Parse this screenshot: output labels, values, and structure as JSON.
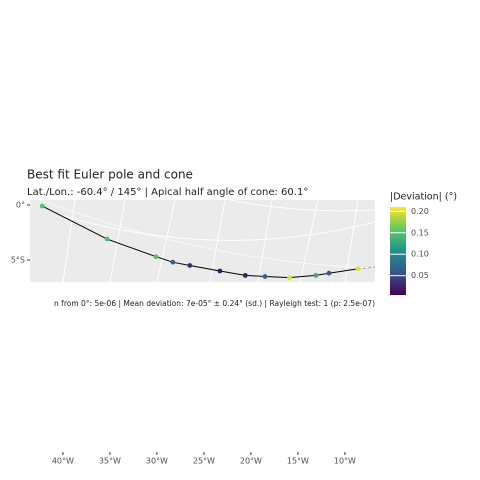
{
  "chart_data": {
    "type": "scatter",
    "title": "Best fit Euler pole and cone",
    "subtitle": "Lat./Lon.: -60.4° / 145° | Apical half angle of cone: 60.1°",
    "caption": "n from 0°: 5e-06 | Mean deviation: 7e-05° ± 0.24° (sd.) | Rayleigh test: 1 (p: 2.5e-07)",
    "legend_title": "|Deviation| (°)",
    "x": [
      -42.2,
      -35.3,
      -30.1,
      -28.3,
      -26.5,
      -23.3,
      -20.6,
      -18.5,
      -15.9,
      -13.1,
      -11.7,
      -8.6
    ],
    "y": [
      -0.1,
      -3.1,
      -4.7,
      -5.2,
      -5.5,
      -6.0,
      -6.4,
      -6.5,
      -6.6,
      -6.4,
      -6.2,
      -5.8
    ],
    "deviation": [
      0.15,
      0.15,
      0.15,
      0.07,
      0.03,
      0.02,
      0.02,
      0.07,
      0.2,
      0.13,
      0.06,
      0.2
    ],
    "xlim": [
      -43.5,
      -6.8
    ],
    "ylim": [
      -7,
      0.45
    ],
    "xticks": [
      {
        "value": -40,
        "label": "40°W"
      },
      {
        "value": -35,
        "label": "35°W"
      },
      {
        "value": -30,
        "label": "30°W"
      },
      {
        "value": -25,
        "label": "25°W"
      },
      {
        "value": -20,
        "label": "20°W"
      },
      {
        "value": -15,
        "label": "15°W"
      },
      {
        "value": -10,
        "label": "10°W"
      }
    ],
    "yticks": [
      {
        "value": 0,
        "label": "0°"
      },
      {
        "value": -5,
        "label": "5°S"
      }
    ],
    "colorbar_lim": [
      0.005,
      0.21
    ],
    "colorbar_ticks": [
      0.05,
      {
        "value": 0.1,
        "label": "0.10"
      },
      0.15,
      {
        "value": 0.2,
        "label": "0.20"
      }
    ],
    "line_color": "#000000"
  }
}
